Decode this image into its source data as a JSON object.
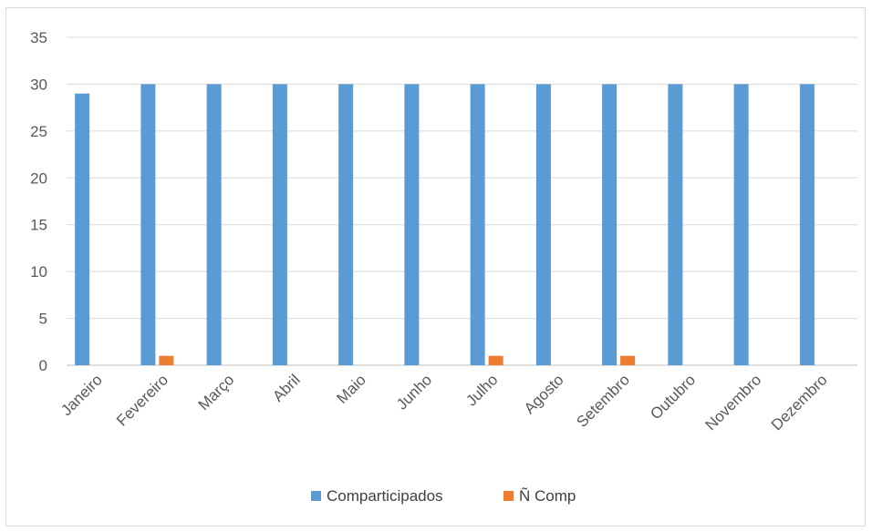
{
  "chart_data": {
    "type": "bar",
    "categories": [
      "Janeiro",
      "Fevereiro",
      "Março",
      "Abril",
      "Maio",
      "Junho",
      "Julho",
      "Agosto",
      "Setembro",
      "Outubro",
      "Novembro",
      "Dezembro"
    ],
    "series": [
      {
        "name": "Comparticipados",
        "color": "#5b9bd5",
        "values": [
          29,
          30,
          30,
          30,
          30,
          30,
          30,
          30,
          30,
          30,
          30,
          30
        ]
      },
      {
        "name": "Ñ Comp",
        "color": "#ed7d31",
        "values": [
          0,
          1,
          0,
          0,
          0,
          0,
          1,
          0,
          1,
          0,
          0,
          0
        ]
      }
    ],
    "yticks": [
      "0",
      "5",
      "10",
      "15",
      "20",
      "25",
      "30",
      "35"
    ],
    "ylim": [
      0,
      35
    ],
    "grid": true,
    "legend_position": "bottom",
    "gridline_color": "#d9d9d9",
    "axis_color": "#bfbfbf"
  }
}
